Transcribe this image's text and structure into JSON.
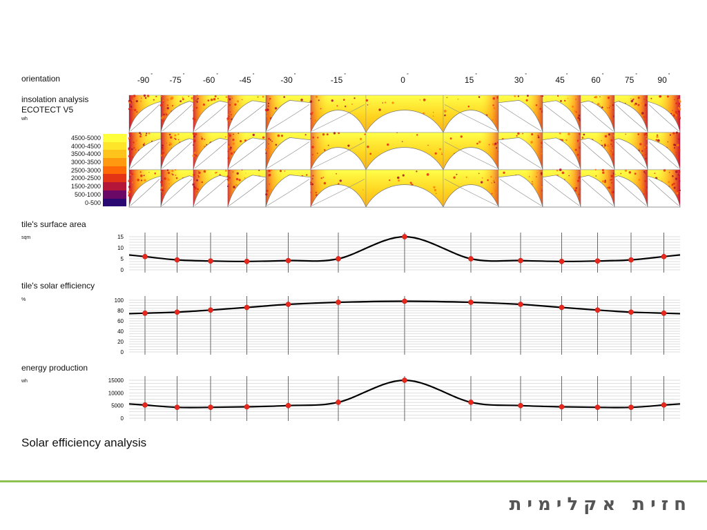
{
  "header": {
    "orientation_label": "orientation",
    "insolation_label": "insolation analysis",
    "software_label": "ECOTECT V5",
    "insolation_unit": "wh",
    "degree_symbol": "°"
  },
  "orientations": [
    "-90",
    "-75",
    "-60",
    "-45",
    "-30",
    "-15",
    "0",
    "15",
    "30",
    "45",
    "60",
    "75",
    "90"
  ],
  "legend": {
    "entries": [
      {
        "label": "4500-5000",
        "color": "#ffff3c"
      },
      {
        "label": "4000-4500",
        "color": "#ffe52a"
      },
      {
        "label": "3500-4000",
        "color": "#ffc41c"
      },
      {
        "label": "3000-3500",
        "color": "#ff9a10"
      },
      {
        "label": "2500-3000",
        "color": "#ff6a06"
      },
      {
        "label": "2000-2500",
        "color": "#e43416"
      },
      {
        "label": "1500-2000",
        "color": "#b4163a"
      },
      {
        "label": "500-1000",
        "color": "#6a0a66"
      },
      {
        "label": "0-500",
        "color": "#2a0a72"
      }
    ]
  },
  "chart_data": [
    {
      "type": "line",
      "title": "tile's surface area",
      "ylabel": "sqm",
      "x": [
        -90,
        -75,
        -60,
        -45,
        -30,
        -15,
        0,
        15,
        30,
        45,
        60,
        75,
        90
      ],
      "series": [
        {
          "values": [
            6,
            4.5,
            4,
            3.8,
            4.2,
            5,
            15,
            5,
            4.2,
            3.8,
            4,
            4.5,
            6
          ]
        }
      ],
      "ylim": [
        0,
        15
      ],
      "yticks": [
        0,
        5,
        10,
        15
      ],
      "grid": true
    },
    {
      "type": "line",
      "title": "tile's solar efficiency",
      "ylabel": "%",
      "x": [
        -90,
        -75,
        -60,
        -45,
        -30,
        -15,
        0,
        15,
        30,
        45,
        60,
        75,
        90
      ],
      "series": [
        {
          "values": [
            75,
            77,
            81,
            86,
            92,
            96,
            98,
            96,
            92,
            86,
            81,
            77,
            75
          ]
        }
      ],
      "ylim": [
        0,
        100
      ],
      "yticks": [
        0,
        20,
        40,
        60,
        80,
        100
      ],
      "grid": true
    },
    {
      "type": "line",
      "title": "energy production",
      "ylabel": "wh",
      "x": [
        -90,
        -75,
        -60,
        -45,
        -30,
        -15,
        0,
        15,
        30,
        45,
        60,
        75,
        90
      ],
      "series": [
        {
          "values": [
            5200,
            4300,
            4300,
            4500,
            5000,
            6300,
            15000,
            6300,
            5000,
            4500,
            4300,
            4300,
            5200
          ]
        }
      ],
      "ylim": [
        0,
        15000
      ],
      "yticks": [
        0,
        5000,
        10000,
        15000
      ],
      "grid": true
    }
  ],
  "main_title": "Solar efficiency analysis",
  "footer": {
    "title": "חזית אקלימית",
    "line_color": "#8cc152"
  },
  "colors": {
    "marker": "#e8281e",
    "line": "#000000",
    "grid": "#bdbdbd"
  }
}
